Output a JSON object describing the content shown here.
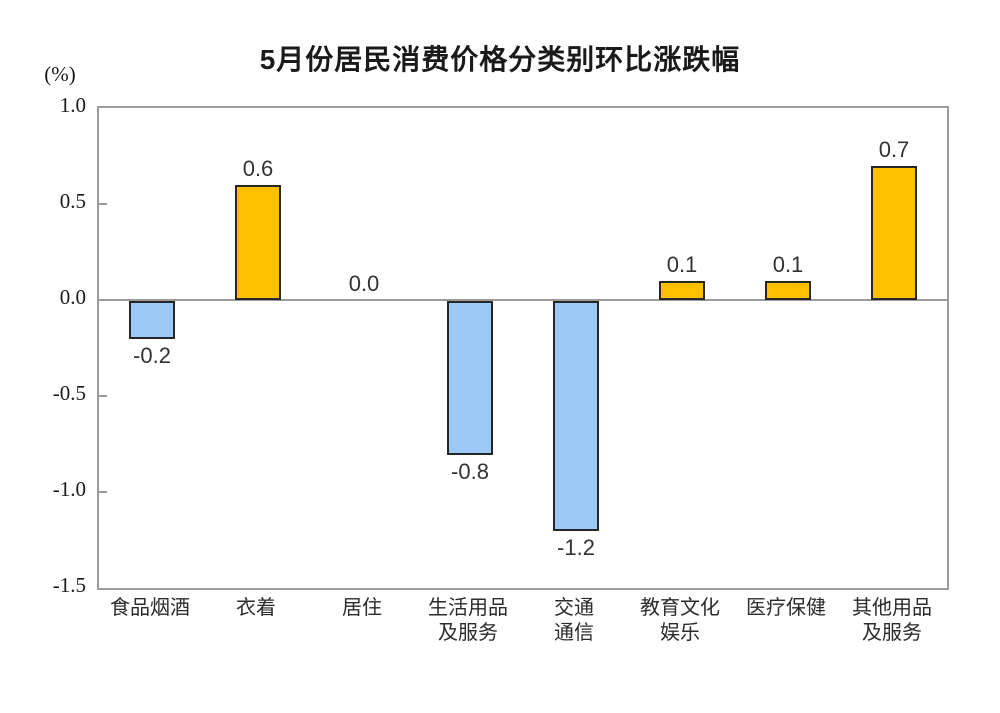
{
  "title": "5月份居民消费价格分类别环比涨跌幅",
  "chart_data": {
    "type": "bar",
    "title": "5月份居民消费价格分类别环比涨跌幅",
    "ylabel": "(%)",
    "xlabel": "",
    "categories": [
      "食品烟酒",
      "衣着",
      "居住",
      "生活用品及服务",
      "交通通信",
      "教育文化娱乐",
      "医疗保健",
      "其他用品及服务"
    ],
    "category_display": [
      "食品烟酒",
      "衣着",
      "居住",
      "生活用品\n及服务",
      "交通\n通信",
      "教育文化\n娱乐",
      "医疗保健",
      "其他用品\n及服务"
    ],
    "values": [
      -0.2,
      0.6,
      0.0,
      -0.8,
      -1.2,
      0.1,
      0.1,
      0.7
    ],
    "value_labels": [
      "-0.2",
      "0.6",
      "0.0",
      "-0.8",
      "-1.2",
      "0.1",
      "0.1",
      "0.7"
    ],
    "ylim": [
      -1.5,
      1.0
    ],
    "ytick_interval": 0.5,
    "ytick_labels": [
      "1.0",
      "0.5",
      "0.0",
      "-0.5",
      "-1.0",
      "-1.5"
    ],
    "ytick_values": [
      1.0,
      0.5,
      0.0,
      -0.5,
      -1.0,
      -1.5
    ],
    "grid": false,
    "legend": false,
    "colors": {
      "positive_bar": "#FFC000",
      "negative_bar": "#9DC9F7",
      "bar_border": "#262626",
      "axis_line": "#9B9B9B",
      "text": "#1A1A1A"
    }
  }
}
